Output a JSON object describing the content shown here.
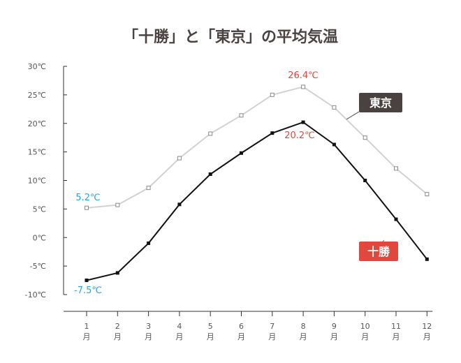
{
  "chart_data": {
    "type": "line",
    "title": "「十勝」と「東京」の平均気温",
    "categories": [
      "1",
      "2",
      "3",
      "4",
      "5",
      "6",
      "7",
      "8",
      "9",
      "10",
      "11",
      "12"
    ],
    "category_unit": "月",
    "y_tick_labels": [
      "30℃",
      "25℃",
      "20℃",
      "15℃",
      "10℃",
      "5℃",
      "0℃",
      "-5℃",
      "-10℃"
    ],
    "y_ticks": [
      30,
      25,
      20,
      15,
      10,
      5,
      0,
      -5,
      -10
    ],
    "ylim": [
      -10,
      30
    ],
    "grid": false,
    "series": [
      {
        "name": "東京",
        "color": "#d2d2d2",
        "label_bg": "#4a4240",
        "marker": "open-square",
        "values": [
          5.2,
          5.7,
          8.7,
          13.9,
          18.2,
          21.4,
          25.0,
          26.4,
          22.8,
          17.5,
          12.1,
          7.6
        ]
      },
      {
        "name": "十勝",
        "color": "#111111",
        "label_bg": "#e0473d",
        "marker": "filled-square",
        "values": [
          -7.5,
          -6.2,
          -1.0,
          5.8,
          11.1,
          14.8,
          18.3,
          20.2,
          16.3,
          10.0,
          3.2,
          -3.8
        ]
      }
    ],
    "annotations": [
      {
        "text": "5.2℃",
        "color": "#2aa4d8"
      },
      {
        "text": "-7.5℃",
        "color": "#2aa4d8"
      },
      {
        "text": "26.4℃",
        "color": "#e0473d"
      },
      {
        "text": "20.2℃",
        "color": "#e0473d"
      }
    ]
  }
}
